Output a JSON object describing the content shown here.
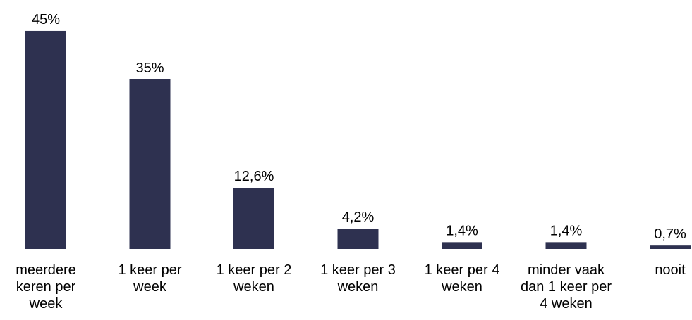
{
  "chart_data": {
    "type": "bar",
    "categories": [
      "meerdere keren per week",
      "1 keer per week",
      "1 keer per 2 weken",
      "1 keer per 3 weken",
      "1 keer per 4 weken",
      "minder vaak dan 1 keer per 4 weken",
      "nooit"
    ],
    "values": [
      45,
      35,
      12.6,
      4.2,
      1.4,
      1.4,
      0.7
    ],
    "value_labels": [
      "45%",
      "35%",
      "12,6%",
      "4,2%",
      "1,4%",
      "1,4%",
      "0,7%"
    ],
    "color": "#2e3150"
  }
}
